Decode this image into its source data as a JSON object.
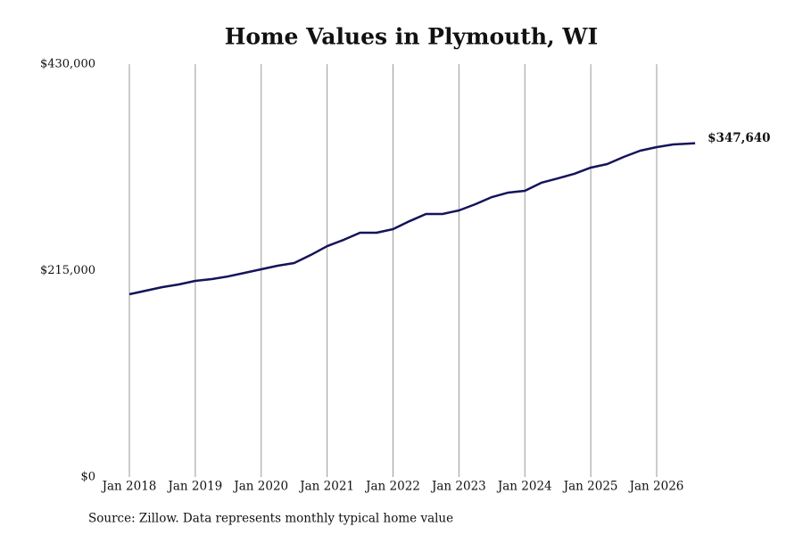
{
  "chart_data": {
    "type": "line",
    "title": "Home Values in Plymouth, WI",
    "source": "Source: Zillow. Data represents monthly typical home value",
    "x": [
      "2018-01",
      "2018-04",
      "2018-07",
      "2018-10",
      "2019-01",
      "2019-04",
      "2019-07",
      "2019-10",
      "2020-01",
      "2020-04",
      "2020-07",
      "2020-10",
      "2021-01",
      "2021-04",
      "2021-07",
      "2021-10",
      "2022-01",
      "2022-04",
      "2022-07",
      "2022-10",
      "2023-01",
      "2023-04",
      "2023-07",
      "2023-10",
      "2024-01",
      "2024-04",
      "2024-07",
      "2024-10",
      "2025-01",
      "2025-04",
      "2025-07",
      "2025-10",
      "2026-01",
      "2026-04",
      "2026-08"
    ],
    "values": [
      190400,
      194100,
      197800,
      200600,
      204300,
      206200,
      209000,
      212700,
      216400,
      220100,
      222900,
      231200,
      240500,
      247000,
      254500,
      254500,
      258200,
      266500,
      274000,
      274000,
      277700,
      284200,
      291600,
      296300,
      298100,
      306500,
      311100,
      315800,
      322300,
      326000,
      333400,
      339900,
      343600,
      346400,
      347640
    ],
    "value_labels": [
      null,
      null,
      null,
      null,
      null,
      null,
      null,
      null,
      null,
      null,
      null,
      null,
      null,
      null,
      null,
      null,
      null,
      null,
      null,
      null,
      null,
      null,
      null,
      null,
      null,
      null,
      null,
      null,
      null,
      null,
      null,
      null,
      null,
      null,
      "$347,640"
    ],
    "color": "#14145a",
    "ylim": [
      0,
      430000
    ],
    "yticks": [
      {
        "value": 0,
        "label": "$0"
      },
      {
        "value": 215000,
        "label": "$215,000"
      },
      {
        "value": 430000,
        "label": "$430,000"
      }
    ],
    "xticks": [
      {
        "value": "2018-01",
        "label": "Jan 2018"
      },
      {
        "value": "2019-01",
        "label": "Jan 2019"
      },
      {
        "value": "2020-01",
        "label": "Jan 2020"
      },
      {
        "value": "2021-01",
        "label": "Jan 2021"
      },
      {
        "value": "2022-01",
        "label": "Jan 2022"
      },
      {
        "value": "2023-01",
        "label": "Jan 2023"
      },
      {
        "value": "2024-01",
        "label": "Jan 2024"
      },
      {
        "value": "2025-01",
        "label": "Jan 2025"
      },
      {
        "value": "2026-01",
        "label": "Jan 2026"
      }
    ],
    "grid": "x"
  }
}
